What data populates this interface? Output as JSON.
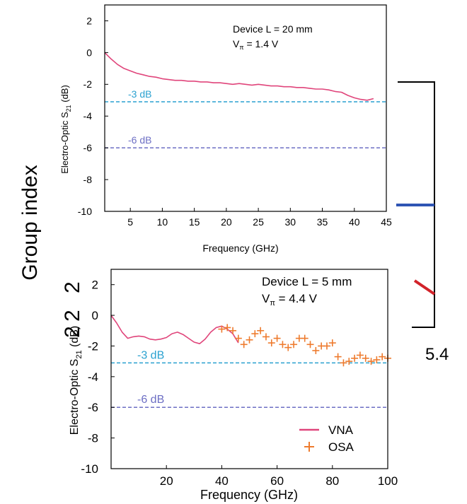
{
  "background": {
    "ylabel": "Group index",
    "tick_label": "5.4",
    "fragment_a": "2",
    "fragment_b": "2",
    "fragment_c": "2",
    "colors": {
      "blue_line": "#2f55b4",
      "red_line": "#d2232a"
    }
  },
  "colors": {
    "vna": "#e0457b",
    "osa": "#ee7b2e",
    "line_3db": "#2aa1d0",
    "line_6db": "#6d6fc4",
    "axis": "#000000"
  },
  "chart_data": [
    {
      "type": "line",
      "xlabel": "Frequency (GHz)",
      "ylabel_main": "Electro-Optic S",
      "ylabel_sub": "21",
      "ylabel_unit": " (dB)",
      "xlim": [
        1,
        45
      ],
      "ylim": [
        -10,
        3
      ],
      "xticks": [
        5,
        10,
        15,
        20,
        25,
        30,
        35,
        40,
        45
      ],
      "yticks": [
        2,
        0,
        -2,
        -4,
        -6,
        -8,
        -10
      ],
      "annotation_line1": "Device L = 20 mm",
      "annotation_line2_pre": "V",
      "annotation_line2_sub": "π",
      "annotation_line2_post": " = 1.4 V",
      "ref_lines": [
        {
          "y": -3.1,
          "label": "-3 dB"
        },
        {
          "y": -6.0,
          "label": "-6 dB"
        }
      ],
      "series": [
        {
          "x": [
            1,
            2,
            3,
            4,
            5,
            6,
            7,
            8,
            9,
            10,
            11,
            12,
            13,
            14,
            15,
            16,
            17,
            18,
            19,
            20,
            21,
            22,
            23,
            24,
            25,
            26,
            27,
            28,
            29,
            30,
            31,
            32,
            33,
            34,
            35,
            36,
            37,
            38,
            39,
            40,
            41,
            42,
            43
          ],
          "values": [
            0.0,
            -0.4,
            -0.75,
            -1.0,
            -1.15,
            -1.3,
            -1.4,
            -1.5,
            -1.55,
            -1.65,
            -1.7,
            -1.75,
            -1.75,
            -1.8,
            -1.8,
            -1.85,
            -1.85,
            -1.9,
            -1.9,
            -1.95,
            -2.0,
            -1.95,
            -2.0,
            -2.05,
            -2.0,
            -2.05,
            -2.1,
            -2.1,
            -2.15,
            -2.15,
            -2.2,
            -2.2,
            -2.25,
            -2.3,
            -2.3,
            -2.35,
            -2.45,
            -2.5,
            -2.7,
            -2.85,
            -2.95,
            -3.0,
            -2.9
          ]
        }
      ]
    },
    {
      "type": "line",
      "xlabel": "Frequency (GHz)",
      "ylabel_main": "Electro-Optic S",
      "ylabel_sub": "21",
      "ylabel_unit": " (dB)",
      "xlim": [
        0,
        100
      ],
      "ylim": [
        -10,
        3
      ],
      "xticks": [
        20,
        40,
        60,
        80,
        100
      ],
      "yticks": [
        2,
        0,
        -2,
        -4,
        -6,
        -8,
        -10
      ],
      "annotation_line1": "Device L = 5 mm",
      "annotation_line2_pre": "V",
      "annotation_line2_sub": "π",
      "annotation_line2_post": " = 4.4 V",
      "ref_lines": [
        {
          "y": -3.1,
          "label": "-3 dB"
        },
        {
          "y": -6.0,
          "label": "-6 dB"
        }
      ],
      "legend": [
        {
          "label": "VNA",
          "marker": "line"
        },
        {
          "label": "OSA",
          "marker": "plus"
        }
      ],
      "series": [
        {
          "name": "VNA",
          "x": [
            0,
            2,
            4,
            6,
            8,
            10,
            12,
            14,
            16,
            18,
            20,
            22,
            24,
            26,
            28,
            30,
            32,
            34,
            36,
            38,
            40,
            42,
            44,
            46
          ],
          "values": [
            0.0,
            -0.5,
            -1.1,
            -1.5,
            -1.4,
            -1.35,
            -1.4,
            -1.55,
            -1.6,
            -1.55,
            -1.45,
            -1.2,
            -1.1,
            -1.25,
            -1.5,
            -1.75,
            -1.85,
            -1.55,
            -1.1,
            -0.8,
            -0.7,
            -0.9,
            -1.2,
            -1.8
          ]
        },
        {
          "name": "OSA",
          "x": [
            40,
            42,
            44,
            46,
            48,
            50,
            52,
            54,
            56,
            58,
            60,
            62,
            64,
            66,
            68,
            70,
            72,
            74,
            76,
            78,
            80,
            82,
            84,
            86,
            88,
            90,
            92,
            94,
            96,
            98,
            100
          ],
          "values": [
            -0.9,
            -0.8,
            -1.0,
            -1.5,
            -1.9,
            -1.6,
            -1.2,
            -1.0,
            -1.4,
            -1.8,
            -1.5,
            -1.9,
            -2.1,
            -1.9,
            -1.5,
            -1.5,
            -1.9,
            -2.3,
            -2.0,
            -2.0,
            -1.8,
            -2.7,
            -3.1,
            -3.0,
            -2.8,
            -2.6,
            -2.8,
            -3.0,
            -2.9,
            -2.7,
            -2.8
          ]
        }
      ]
    }
  ]
}
